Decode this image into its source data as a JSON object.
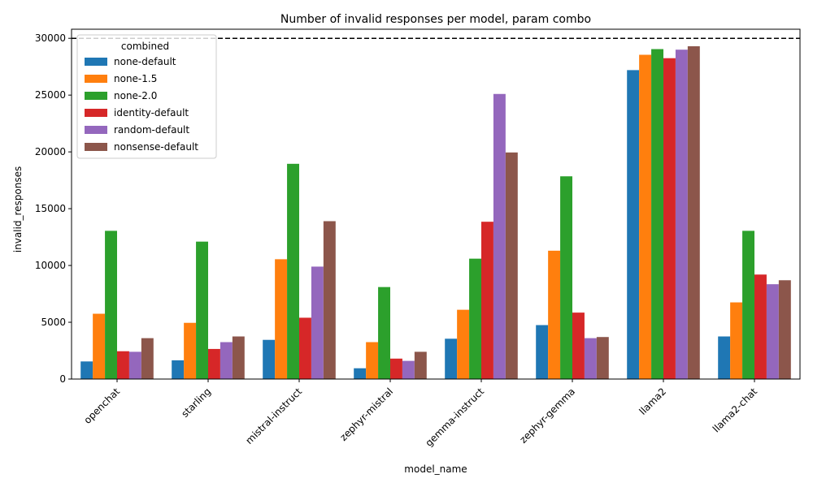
{
  "chart_data": {
    "type": "bar",
    "title": "Number of invalid responses per model, param combo",
    "xlabel": "model_name",
    "ylabel": "invalid_responses",
    "ylim": [
      0,
      30800
    ],
    "yticks": [
      0,
      5000,
      10000,
      15000,
      20000,
      25000,
      30000
    ],
    "grid": false,
    "legend": {
      "title": "combined",
      "placement": "top-left"
    },
    "reference_line": {
      "y": 30000,
      "style": "dashed",
      "color": "#000000"
    },
    "categories": [
      "openchat",
      "starling",
      "mistral-instruct",
      "zephyr-mistral",
      "gemma-instruct",
      "zephyr-gemma",
      "llama2",
      "llama2-chat"
    ],
    "series": [
      {
        "name": "none-default",
        "color": "#1f77b4",
        "values": [
          1550,
          1650,
          3450,
          950,
          3550,
          4750,
          27200,
          3750
        ]
      },
      {
        "name": "none-1.5",
        "color": "#ff7f0e",
        "values": [
          5750,
          4950,
          10550,
          3250,
          6100,
          11300,
          28550,
          6750
        ]
      },
      {
        "name": "none-2.0",
        "color": "#2ca02c",
        "values": [
          13050,
          12100,
          18950,
          8100,
          10600,
          17850,
          29050,
          13050
        ]
      },
      {
        "name": "identity-default",
        "color": "#d62728",
        "values": [
          2450,
          2650,
          5400,
          1800,
          13850,
          5850,
          28250,
          9200
        ]
      },
      {
        "name": "random-default",
        "color": "#9467bd",
        "values": [
          2400,
          3250,
          9900,
          1600,
          25100,
          3600,
          29000,
          8350
        ]
      },
      {
        "name": "nonsense-default",
        "color": "#8c564b",
        "values": [
          3600,
          3750,
          13900,
          2400,
          19950,
          3700,
          29300,
          8700
        ]
      }
    ]
  }
}
